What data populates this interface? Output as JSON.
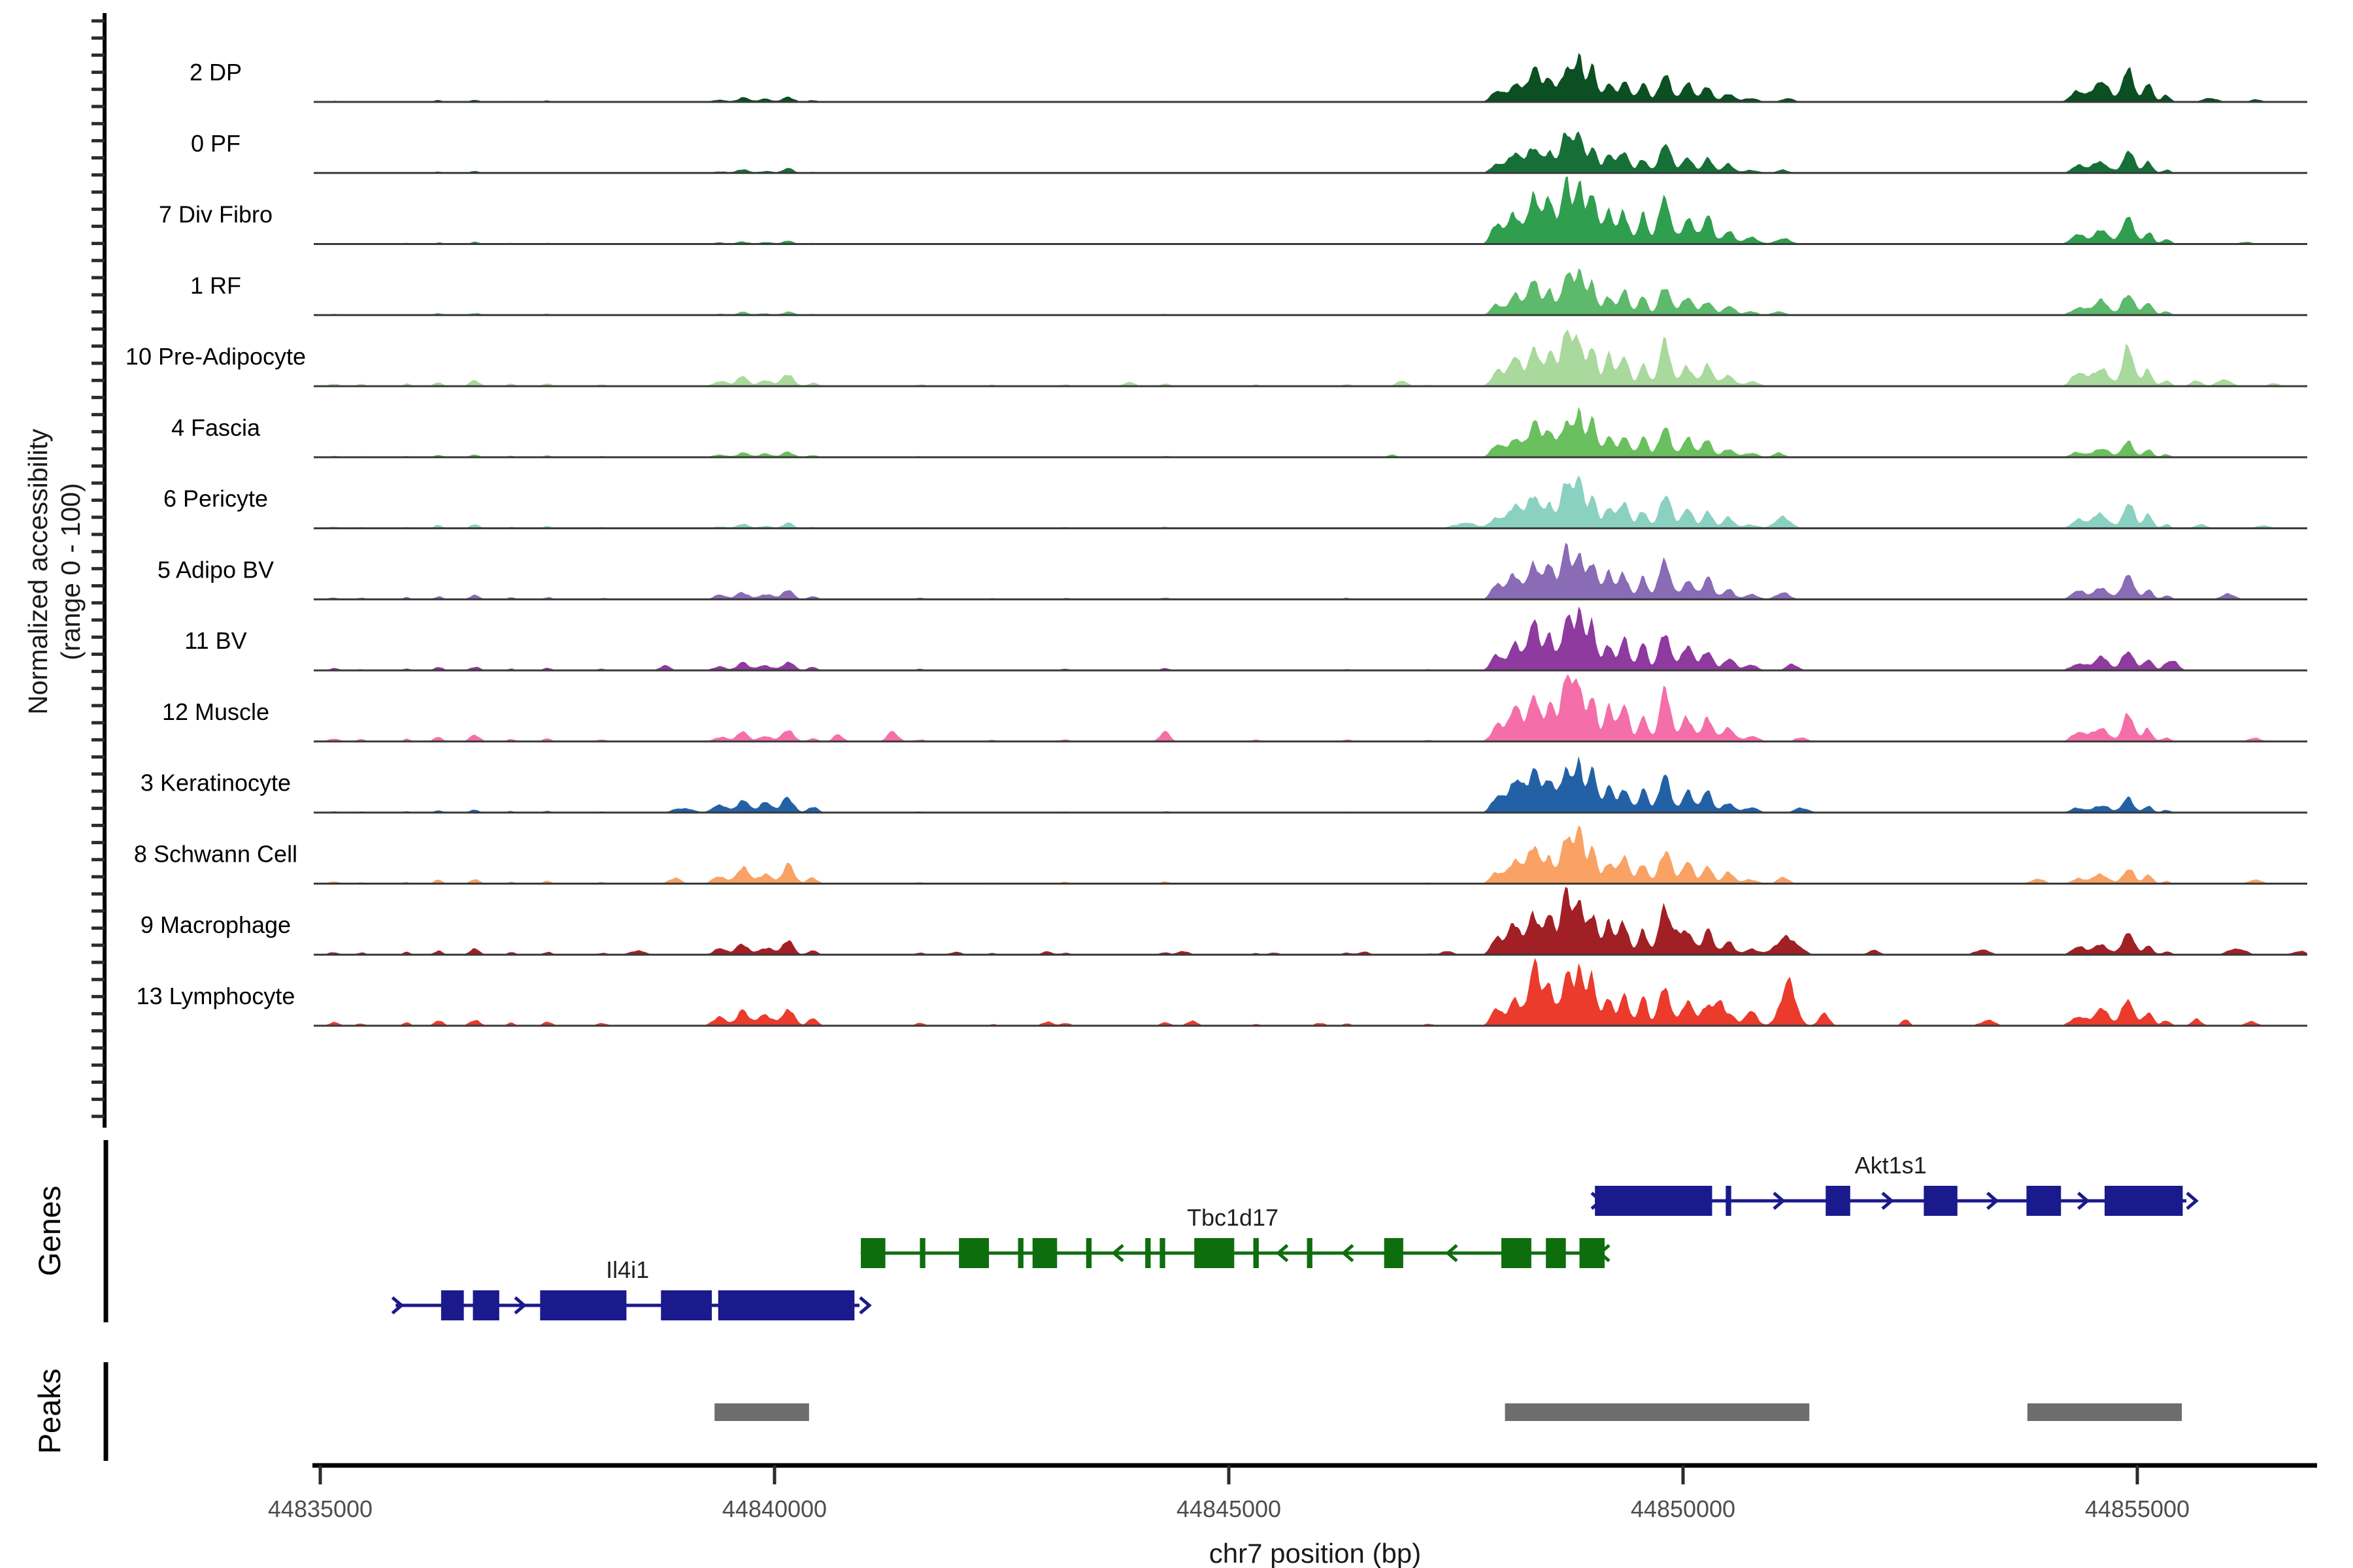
{
  "figure": {
    "y_axis_label_line1": "Normalized accessibility",
    "y_axis_label_line2": "(range 0 - 100)",
    "x_axis_title": "chr7 position (bp)",
    "genes_section_label": "Genes",
    "peaks_section_label": "Peaks"
  },
  "chart_data": {
    "type": "area",
    "title": "",
    "xlabel": "chr7 position (bp)",
    "ylabel": "Normalized accessibility (range 0 - 100)",
    "chromosome": "chr7",
    "x_range_bp": [
      44834930,
      44856870
    ],
    "x_ticks": [
      "44835000",
      "44840000",
      "44845000",
      "44850000",
      "44855000"
    ],
    "x_tick_values": [
      44835000,
      44840000,
      44845000,
      44850000,
      44855000
    ],
    "per_track_ylim": [
      0,
      100
    ],
    "grid": false,
    "bump_templates": {
      "main": [
        [
          44847950,
          90,
          0.28
        ],
        [
          44848150,
          100,
          0.5
        ],
        [
          44848360,
          90,
          0.78
        ],
        [
          44848530,
          70,
          0.62
        ],
        [
          44848720,
          90,
          1.0
        ],
        [
          44848860,
          60,
          0.95
        ],
        [
          44849000,
          70,
          0.8
        ],
        [
          44849180,
          70,
          0.52
        ],
        [
          44849350,
          80,
          0.55
        ],
        [
          44849560,
          70,
          0.45
        ],
        [
          44849800,
          90,
          0.75
        ],
        [
          44850050,
          90,
          0.42
        ],
        [
          44850270,
          80,
          0.4
        ],
        [
          44850500,
          90,
          0.22
        ],
        [
          44850750,
          110,
          0.1
        ]
      ],
      "right": [
        [
          44854350,
          110,
          0.35
        ],
        [
          44854600,
          120,
          0.55
        ],
        [
          44854900,
          90,
          1.0
        ],
        [
          44855120,
          70,
          0.5
        ],
        [
          44855320,
          70,
          0.18
        ]
      ],
      "left": [
        [
          44839400,
          110,
          0.45
        ],
        [
          44839650,
          90,
          0.85
        ],
        [
          44839900,
          110,
          0.55
        ],
        [
          44840150,
          90,
          1.0
        ],
        [
          44840420,
          80,
          0.35
        ]
      ],
      "scatter": [
        [
          44835150,
          90,
          0.5
        ],
        [
          44835450,
          70,
          0.4
        ],
        [
          44835950,
          60,
          0.5
        ],
        [
          44836300,
          70,
          0.8
        ],
        [
          44836700,
          80,
          1.0
        ],
        [
          44837100,
          60,
          0.5
        ],
        [
          44837500,
          70,
          0.6
        ],
        [
          44838100,
          80,
          0.4
        ],
        [
          44841600,
          80,
          0.4
        ],
        [
          44842400,
          70,
          0.3
        ],
        [
          44843200,
          80,
          0.4
        ],
        [
          44844300,
          80,
          0.5
        ],
        [
          44845300,
          70,
          0.3
        ],
        [
          44846300,
          80,
          0.35
        ],
        [
          44847200,
          80,
          0.3
        ]
      ]
    },
    "tracks": [
      {
        "label": "2 DP",
        "color": "#0b4f22",
        "main_h": 62,
        "right_h": 55,
        "left_h": 9,
        "scatter_h": 4,
        "extra": [
          [
            44851150,
            100,
            6
          ],
          [
            44855800,
            120,
            6
          ],
          [
            44856300,
            100,
            4
          ]
        ]
      },
      {
        "label": "0 PF",
        "color": "#176f38",
        "main_h": 58,
        "right_h": 33,
        "left_h": 7,
        "scatter_h": 3,
        "extra": [
          [
            44851100,
            100,
            5
          ]
        ]
      },
      {
        "label": "7 Div Fibro",
        "color": "#2f9e4f",
        "main_h": 100,
        "right_h": 42,
        "left_h": 6,
        "scatter_h": 4,
        "extra": [
          [
            44851100,
            120,
            10
          ],
          [
            44856200,
            120,
            4
          ]
        ]
      },
      {
        "label": "1 RF",
        "color": "#5db96b",
        "main_h": 63,
        "right_h": 38,
        "left_h": 6,
        "scatter_h": 4,
        "extra": [
          [
            44851050,
            100,
            6
          ]
        ]
      },
      {
        "label": "10 Pre-Adipocyte",
        "color": "#a9d99c",
        "main_h": 82,
        "right_h": 55,
        "left_h": 18,
        "scatter_h": 9,
        "extra": [
          [
            44843900,
            90,
            7
          ],
          [
            44846900,
            90,
            8
          ],
          [
            44855650,
            90,
            9
          ],
          [
            44855950,
            110,
            11
          ],
          [
            44856500,
            90,
            5
          ],
          [
            44857600,
            100,
            4
          ]
        ]
      },
      {
        "label": "4 Fascia",
        "color": "#6abf5e",
        "main_h": 66,
        "right_h": 25,
        "left_h": 10,
        "scatter_h": 5,
        "extra": [
          [
            44846800,
            80,
            4
          ],
          [
            44851050,
            90,
            8
          ]
        ]
      },
      {
        "label": "6 Pericyte",
        "color": "#8ad1c2",
        "main_h": 70,
        "right_h": 40,
        "left_h": 8,
        "scatter_h": 6,
        "extra": [
          [
            44847600,
            200,
            8
          ],
          [
            44851100,
            130,
            16
          ],
          [
            44855700,
            100,
            6
          ],
          [
            44856400,
            120,
            5
          ]
        ]
      },
      {
        "label": "5 Adipo BV",
        "color": "#8a6bb5",
        "main_h": 78,
        "right_h": 36,
        "left_h": 15,
        "scatter_h": 7,
        "extra": [
          [
            44851100,
            110,
            12
          ],
          [
            44856000,
            120,
            8
          ]
        ]
      },
      {
        "label": "11 BV",
        "color": "#8e3a9e",
        "main_h": 86,
        "right_h": 35,
        "left_h": 15,
        "scatter_h": 7,
        "extra": [
          [
            44838800,
            90,
            8
          ],
          [
            44851200,
            100,
            9
          ],
          [
            44855400,
            90,
            14
          ]
        ]
      },
      {
        "label": "12 Muscle",
        "color": "#f46fa9",
        "main_h": 96,
        "right_h": 40,
        "left_h": 17,
        "scatter_h": 10,
        "extra": [
          [
            44840700,
            80,
            10
          ],
          [
            44841300,
            90,
            14
          ],
          [
            44844300,
            80,
            11
          ],
          [
            44851300,
            90,
            8
          ],
          [
            44856300,
            110,
            6
          ]
        ]
      },
      {
        "label": "3 Keratinocyte",
        "color": "#2361a6",
        "main_h": 78,
        "right_h": 22,
        "left_h": 26,
        "scatter_h": 5,
        "extra": [
          [
            44839000,
            150,
            8
          ],
          [
            44848200,
            140,
            20
          ],
          [
            44851300,
            120,
            7
          ]
        ]
      },
      {
        "label": "8 Schwann Cell",
        "color": "#f9a264",
        "main_h": 74,
        "right_h": 25,
        "left_h": 29,
        "scatter_h": 7,
        "extra": [
          [
            44838900,
            100,
            10
          ],
          [
            44851100,
            100,
            9
          ],
          [
            44853900,
            120,
            7
          ],
          [
            44856300,
            110,
            6
          ]
        ]
      },
      {
        "label": "9 Macrophage",
        "color": "#a02026",
        "main_h": 92,
        "right_h": 32,
        "left_h": 21,
        "scatter_h": 9,
        "extra": [
          [
            44838500,
            120,
            7
          ],
          [
            44842000,
            100,
            5
          ],
          [
            44843000,
            90,
            5
          ],
          [
            44844500,
            90,
            6
          ],
          [
            44845500,
            90,
            4
          ],
          [
            44846500,
            90,
            5
          ],
          [
            44847400,
            90,
            6
          ],
          [
            44849950,
            70,
            22
          ],
          [
            44851150,
            160,
            30
          ],
          [
            44852100,
            90,
            7
          ],
          [
            44853300,
            120,
            8
          ],
          [
            44856100,
            150,
            9
          ],
          [
            44856800,
            120,
            6
          ]
        ]
      },
      {
        "label": "13 Lymphocyte",
        "color": "#ea3b2c",
        "main_h": 88,
        "right_h": 45,
        "left_h": 30,
        "scatter_h": 11,
        "extra": [
          [
            44843000,
            80,
            8
          ],
          [
            44844600,
            80,
            9
          ],
          [
            44846000,
            80,
            5
          ],
          [
            44848400,
            90,
            20
          ],
          [
            44850400,
            60,
            38
          ],
          [
            44850750,
            90,
            12
          ],
          [
            44851150,
            120,
            65
          ],
          [
            44851550,
            80,
            22
          ],
          [
            44852450,
            60,
            10
          ],
          [
            44853350,
            110,
            10
          ],
          [
            44855650,
            80,
            11
          ],
          [
            44856250,
            100,
            7
          ],
          [
            44857900,
            110,
            4
          ]
        ]
      }
    ],
    "genes": [
      {
        "name": "Il4i1",
        "strand": "+",
        "color": "#1a1a8c",
        "row": 2,
        "start": 44835830,
        "end": 44840935,
        "exons": [
          [
            44836330,
            44836580
          ],
          [
            44836680,
            44836970
          ],
          [
            44837420,
            44838370
          ],
          [
            44838750,
            44839310
          ],
          [
            44839380,
            44840880
          ]
        ]
      },
      {
        "name": "Tbc1d17",
        "strand": "-",
        "color": "#0e6e0e",
        "row": 1,
        "start": 44840950,
        "end": 44849137,
        "exons": [
          [
            44840950,
            44841220
          ],
          [
            44841600,
            44841660
          ],
          [
            44842030,
            44842360
          ],
          [
            44842680,
            44842740
          ],
          [
            44842840,
            44843110
          ],
          [
            44843430,
            44843490
          ],
          [
            44844080,
            44844140
          ],
          [
            44844240,
            44844300
          ],
          [
            44844620,
            44845060
          ],
          [
            44845270,
            44845330
          ],
          [
            44845860,
            44845920
          ],
          [
            44846710,
            44846920
          ],
          [
            44848000,
            44848330
          ],
          [
            44848490,
            44848710
          ],
          [
            44848860,
            44849137
          ]
        ]
      },
      {
        "name": "Akt1s1",
        "strand": "+",
        "color": "#1a1a8c",
        "row": 0,
        "start": 44849030,
        "end": 44855540,
        "exons": [
          [
            44849030,
            44850320
          ],
          [
            44850470,
            44850530
          ],
          [
            44851570,
            44851840
          ],
          [
            44852650,
            44853020
          ],
          [
            44853780,
            44854160
          ],
          [
            44854640,
            44855500
          ]
        ]
      }
    ],
    "peaks": {
      "color": "#6d6d6d",
      "regions_bp": [
        [
          44839340,
          44840380
        ],
        [
          44848040,
          44851390
        ],
        [
          44853790,
          44855490
        ]
      ]
    }
  }
}
